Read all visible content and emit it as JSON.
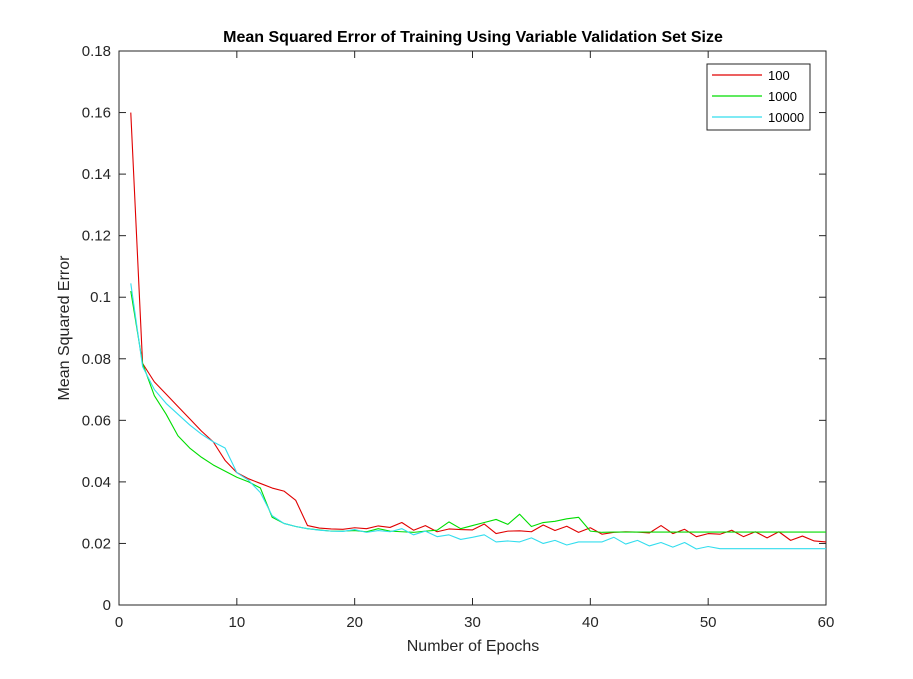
{
  "chart_data": {
    "type": "line",
    "title": "Mean Squared Error of Training Using Variable Validation Set Size",
    "xlabel": "Number of Epochs",
    "ylabel": "Mean Squared Error",
    "xlim": [
      0,
      60
    ],
    "ylim": [
      0,
      0.18
    ],
    "xticks": [
      0,
      10,
      20,
      30,
      40,
      50,
      60
    ],
    "yticks": [
      0,
      0.02,
      0.04,
      0.06,
      0.08,
      0.1,
      0.12,
      0.14,
      0.16,
      0.18
    ],
    "xtick_labels": [
      "0",
      "10",
      "20",
      "30",
      "40",
      "50",
      "60"
    ],
    "ytick_labels": [
      "0",
      "0.02",
      "0.04",
      "0.06",
      "0.08",
      "0.1",
      "0.12",
      "0.14",
      "0.16",
      "0.18"
    ],
    "grid": false,
    "legend_position": "top-right",
    "x": [
      1,
      2,
      3,
      4,
      5,
      6,
      7,
      8,
      9,
      10,
      11,
      12,
      13,
      14,
      15,
      16,
      17,
      18,
      19,
      20,
      21,
      22,
      23,
      24,
      25,
      26,
      27,
      28,
      29,
      30,
      31,
      32,
      33,
      34,
      35,
      36,
      37,
      38,
      39,
      40,
      41,
      42,
      43,
      44,
      45,
      46,
      47,
      48,
      49,
      50,
      51,
      52,
      53,
      54,
      55,
      56,
      57,
      58,
      59,
      60
    ],
    "series": [
      {
        "name": "100",
        "color": "#e00000",
        "values": [
          0.16,
          0.0785,
          0.0725,
          0.0685,
          0.0645,
          0.0605,
          0.0565,
          0.053,
          0.047,
          0.043,
          0.041,
          0.0395,
          0.038,
          0.037,
          0.034,
          0.0258,
          0.025,
          0.0247,
          0.0246,
          0.0251,
          0.0248,
          0.0257,
          0.0252,
          0.0268,
          0.0243,
          0.0258,
          0.0238,
          0.0247,
          0.0245,
          0.0244,
          0.0263,
          0.0232,
          0.024,
          0.0241,
          0.0238,
          0.026,
          0.0242,
          0.0256,
          0.0236,
          0.0251,
          0.023,
          0.0236,
          0.0238,
          0.0237,
          0.0234,
          0.0258,
          0.0232,
          0.0246,
          0.0222,
          0.0232,
          0.023,
          0.0243,
          0.0222,
          0.0238,
          0.0218,
          0.0238,
          0.021,
          0.0224,
          0.0208,
          0.0205
        ]
      },
      {
        "name": "1000",
        "color": "#00dd00",
        "values": [
          0.102,
          0.0785,
          0.068,
          0.062,
          0.055,
          0.051,
          0.048,
          0.0455,
          0.0435,
          0.0415,
          0.04,
          0.038,
          0.0285,
          0.0265,
          0.0255,
          0.0248,
          0.0244,
          0.024,
          0.024,
          0.0242,
          0.0238,
          0.0248,
          0.024,
          0.0238,
          0.0236,
          0.024,
          0.0243,
          0.027,
          0.0248,
          0.0258,
          0.0268,
          0.0278,
          0.0262,
          0.0295,
          0.0255,
          0.0268,
          0.0272,
          0.028,
          0.0285,
          0.024,
          0.0236,
          0.0237,
          0.0237,
          0.0237,
          0.0237,
          0.0237,
          0.0237,
          0.0237,
          0.0237,
          0.0237,
          0.0237,
          0.0237,
          0.0237,
          0.0237,
          0.0237,
          0.0237,
          0.0237,
          0.0237,
          0.0237,
          0.0237
        ]
      },
      {
        "name": "10000",
        "color": "#33ddee",
        "values": [
          0.1045,
          0.0775,
          0.07,
          0.0655,
          0.062,
          0.0585,
          0.0555,
          0.053,
          0.051,
          0.043,
          0.0405,
          0.0365,
          0.029,
          0.0265,
          0.0255,
          0.0248,
          0.0243,
          0.024,
          0.0239,
          0.0245,
          0.0236,
          0.0242,
          0.0238,
          0.0248,
          0.0228,
          0.024,
          0.0222,
          0.0228,
          0.0213,
          0.022,
          0.0228,
          0.0205,
          0.0208,
          0.0205,
          0.0218,
          0.02,
          0.021,
          0.0195,
          0.0205,
          0.0205,
          0.0205,
          0.022,
          0.0198,
          0.021,
          0.0192,
          0.0203,
          0.0188,
          0.0203,
          0.0182,
          0.019,
          0.0183,
          0.0183,
          0.0183,
          0.0183,
          0.0183,
          0.0183,
          0.0183,
          0.0183,
          0.0183,
          0.0183
        ]
      }
    ]
  }
}
